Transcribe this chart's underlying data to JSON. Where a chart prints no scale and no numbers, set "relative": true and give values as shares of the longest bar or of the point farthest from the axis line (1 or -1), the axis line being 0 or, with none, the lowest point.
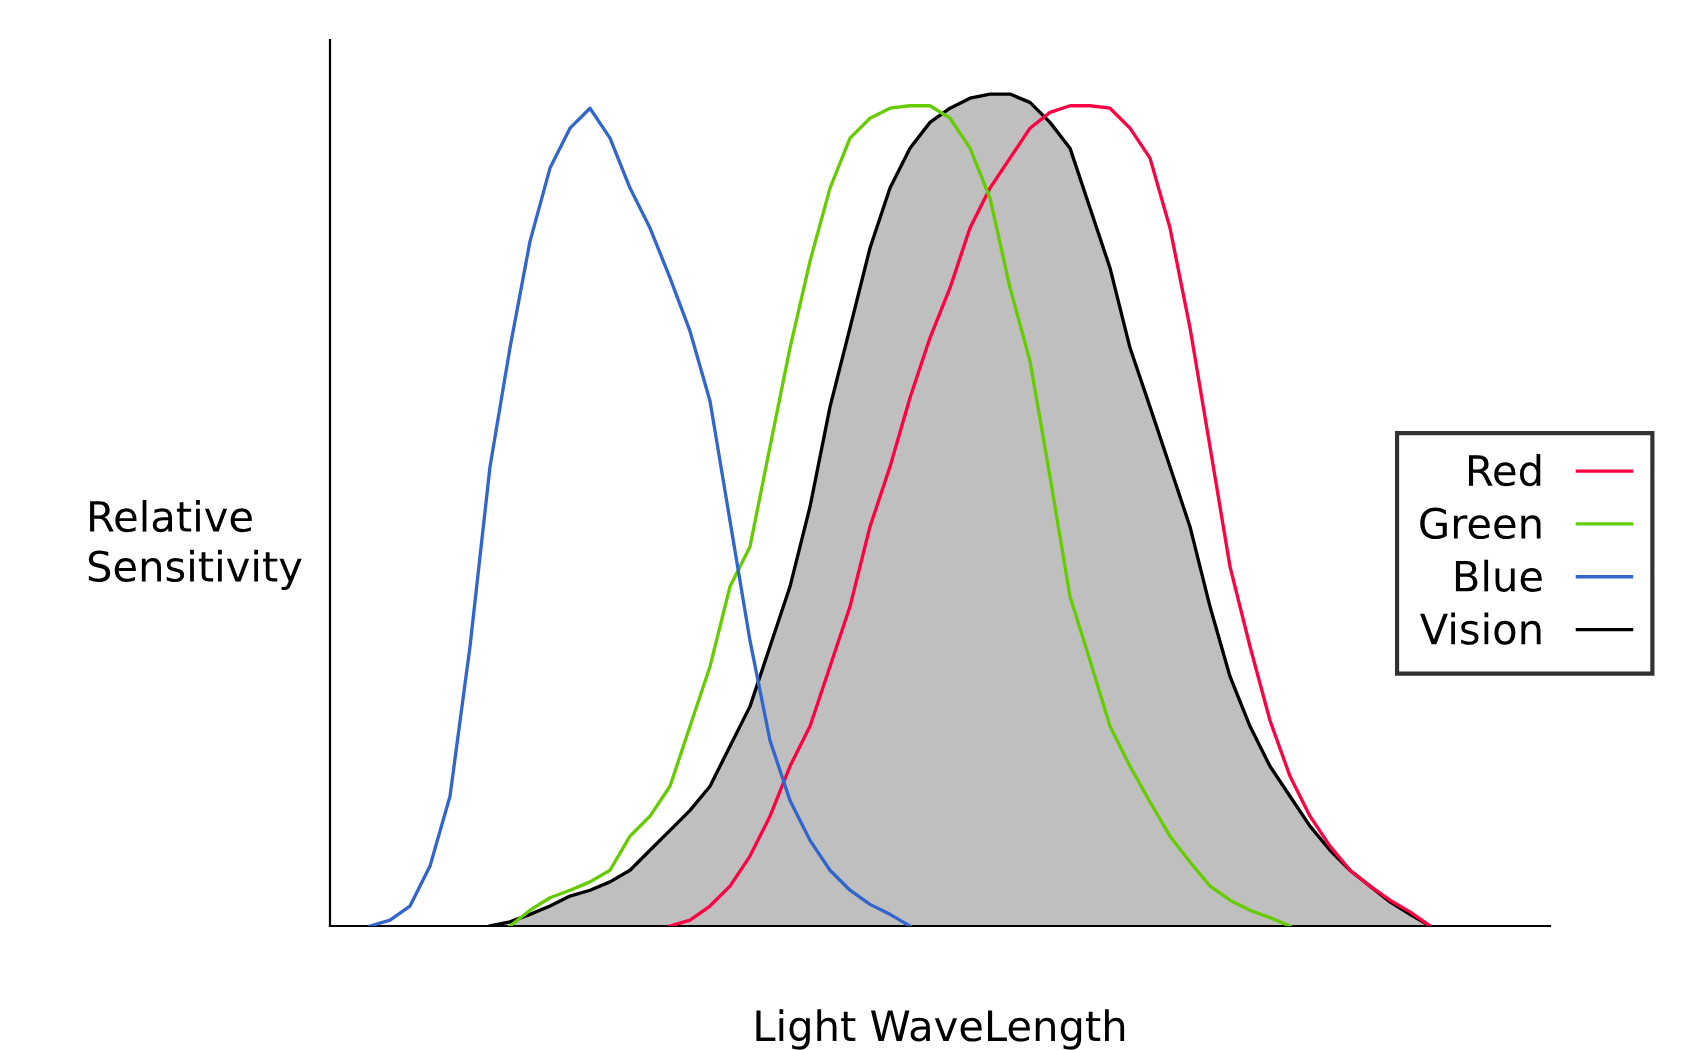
{
  "chart_data": {
    "type": "line",
    "relative": true,
    "xlabel": "Light WaveLength",
    "ylabel": "Relative\nSensitivity",
    "legend": "right",
    "grid": false,
    "tick_labels": false,
    "marker": "none",
    "line_style": "solid",
    "categories": [
      null,
      null,
      null,
      null,
      null,
      null,
      null,
      null,
      null,
      null,
      null,
      null,
      null,
      null,
      null,
      null,
      null,
      null,
      null,
      null,
      null,
      null,
      null,
      null,
      null,
      null,
      null,
      null,
      null,
      null,
      null,
      null,
      null,
      null,
      null,
      null,
      null,
      null,
      null,
      null,
      null,
      null,
      null,
      null,
      null,
      null,
      null,
      null,
      null,
      null,
      null,
      null,
      null,
      null,
      null
    ],
    "series": [
      {
        "name": "Vision",
        "type": "area",
        "color": "#000000",
        "values": [
          null,
          null,
          null,
          null,
          null,
          null,
          0,
          0.005,
          0.014,
          0.024,
          0.036,
          0.043,
          0.053,
          0.067,
          0.091,
          0.115,
          0.139,
          0.168,
          0.216,
          0.264,
          0.336,
          0.408,
          0.504,
          0.624,
          0.719,
          0.815,
          0.887,
          0.935,
          0.966,
          0.983,
          0.995,
          1,
          1,
          0.99,
          0.966,
          0.935,
          0.863,
          0.791,
          0.695,
          0.624,
          0.552,
          0.48,
          0.384,
          0.3,
          0.24,
          0.192,
          0.156,
          0.12,
          0.091,
          0.067,
          0.048,
          0.029,
          0.014,
          0,
          null
        ]
      },
      {
        "name": "Red",
        "color": "#ff0040",
        "values": [
          null,
          null,
          null,
          null,
          null,
          null,
          null,
          null,
          null,
          null,
          null,
          null,
          null,
          null,
          null,
          0,
          0.007,
          0.024,
          0.048,
          0.084,
          0.132,
          0.192,
          0.24,
          0.312,
          0.384,
          0.48,
          0.552,
          0.635,
          0.707,
          0.767,
          0.839,
          0.887,
          0.923,
          0.959,
          0.978,
          0.986,
          0.986,
          0.983,
          0.959,
          0.923,
          0.839,
          0.719,
          0.576,
          0.432,
          0.336,
          0.247,
          0.18,
          0.132,
          0.096,
          0.067,
          0.048,
          0.031,
          0.017,
          0,
          null
        ]
      },
      {
        "name": "Green",
        "color": "#66cc00",
        "values": [
          null,
          null,
          null,
          null,
          null,
          null,
          null,
          0,
          0.019,
          0.034,
          0.043,
          0.053,
          0.067,
          0.108,
          0.132,
          0.168,
          0.24,
          0.312,
          0.408,
          0.456,
          0.576,
          0.695,
          0.799,
          0.887,
          0.947,
          0.971,
          0.983,
          0.986,
          0.986,
          0.971,
          0.935,
          0.875,
          0.767,
          0.679,
          0.54,
          0.396,
          0.319,
          0.24,
          0.192,
          0.149,
          0.108,
          0.077,
          0.048,
          0.031,
          0.019,
          0.01,
          0,
          null,
          null,
          null,
          null,
          null,
          null,
          null,
          null
        ]
      },
      {
        "name": "Blue",
        "color": "#3366cc",
        "values": [
          0,
          0.007,
          0.024,
          0.072,
          0.156,
          0.336,
          0.552,
          0.695,
          0.823,
          0.911,
          0.959,
          0.983,
          0.947,
          0.887,
          0.839,
          0.779,
          0.715,
          0.631,
          0.487,
          0.343,
          0.223,
          0.151,
          0.103,
          0.067,
          0.043,
          0.026,
          0.014,
          0,
          null,
          null,
          null,
          null,
          null,
          null,
          null,
          null,
          null,
          null,
          null,
          null,
          null,
          null,
          null,
          null,
          null,
          null,
          null,
          null,
          null,
          null,
          null,
          null,
          null,
          null,
          null
        ]
      }
    ]
  }
}
